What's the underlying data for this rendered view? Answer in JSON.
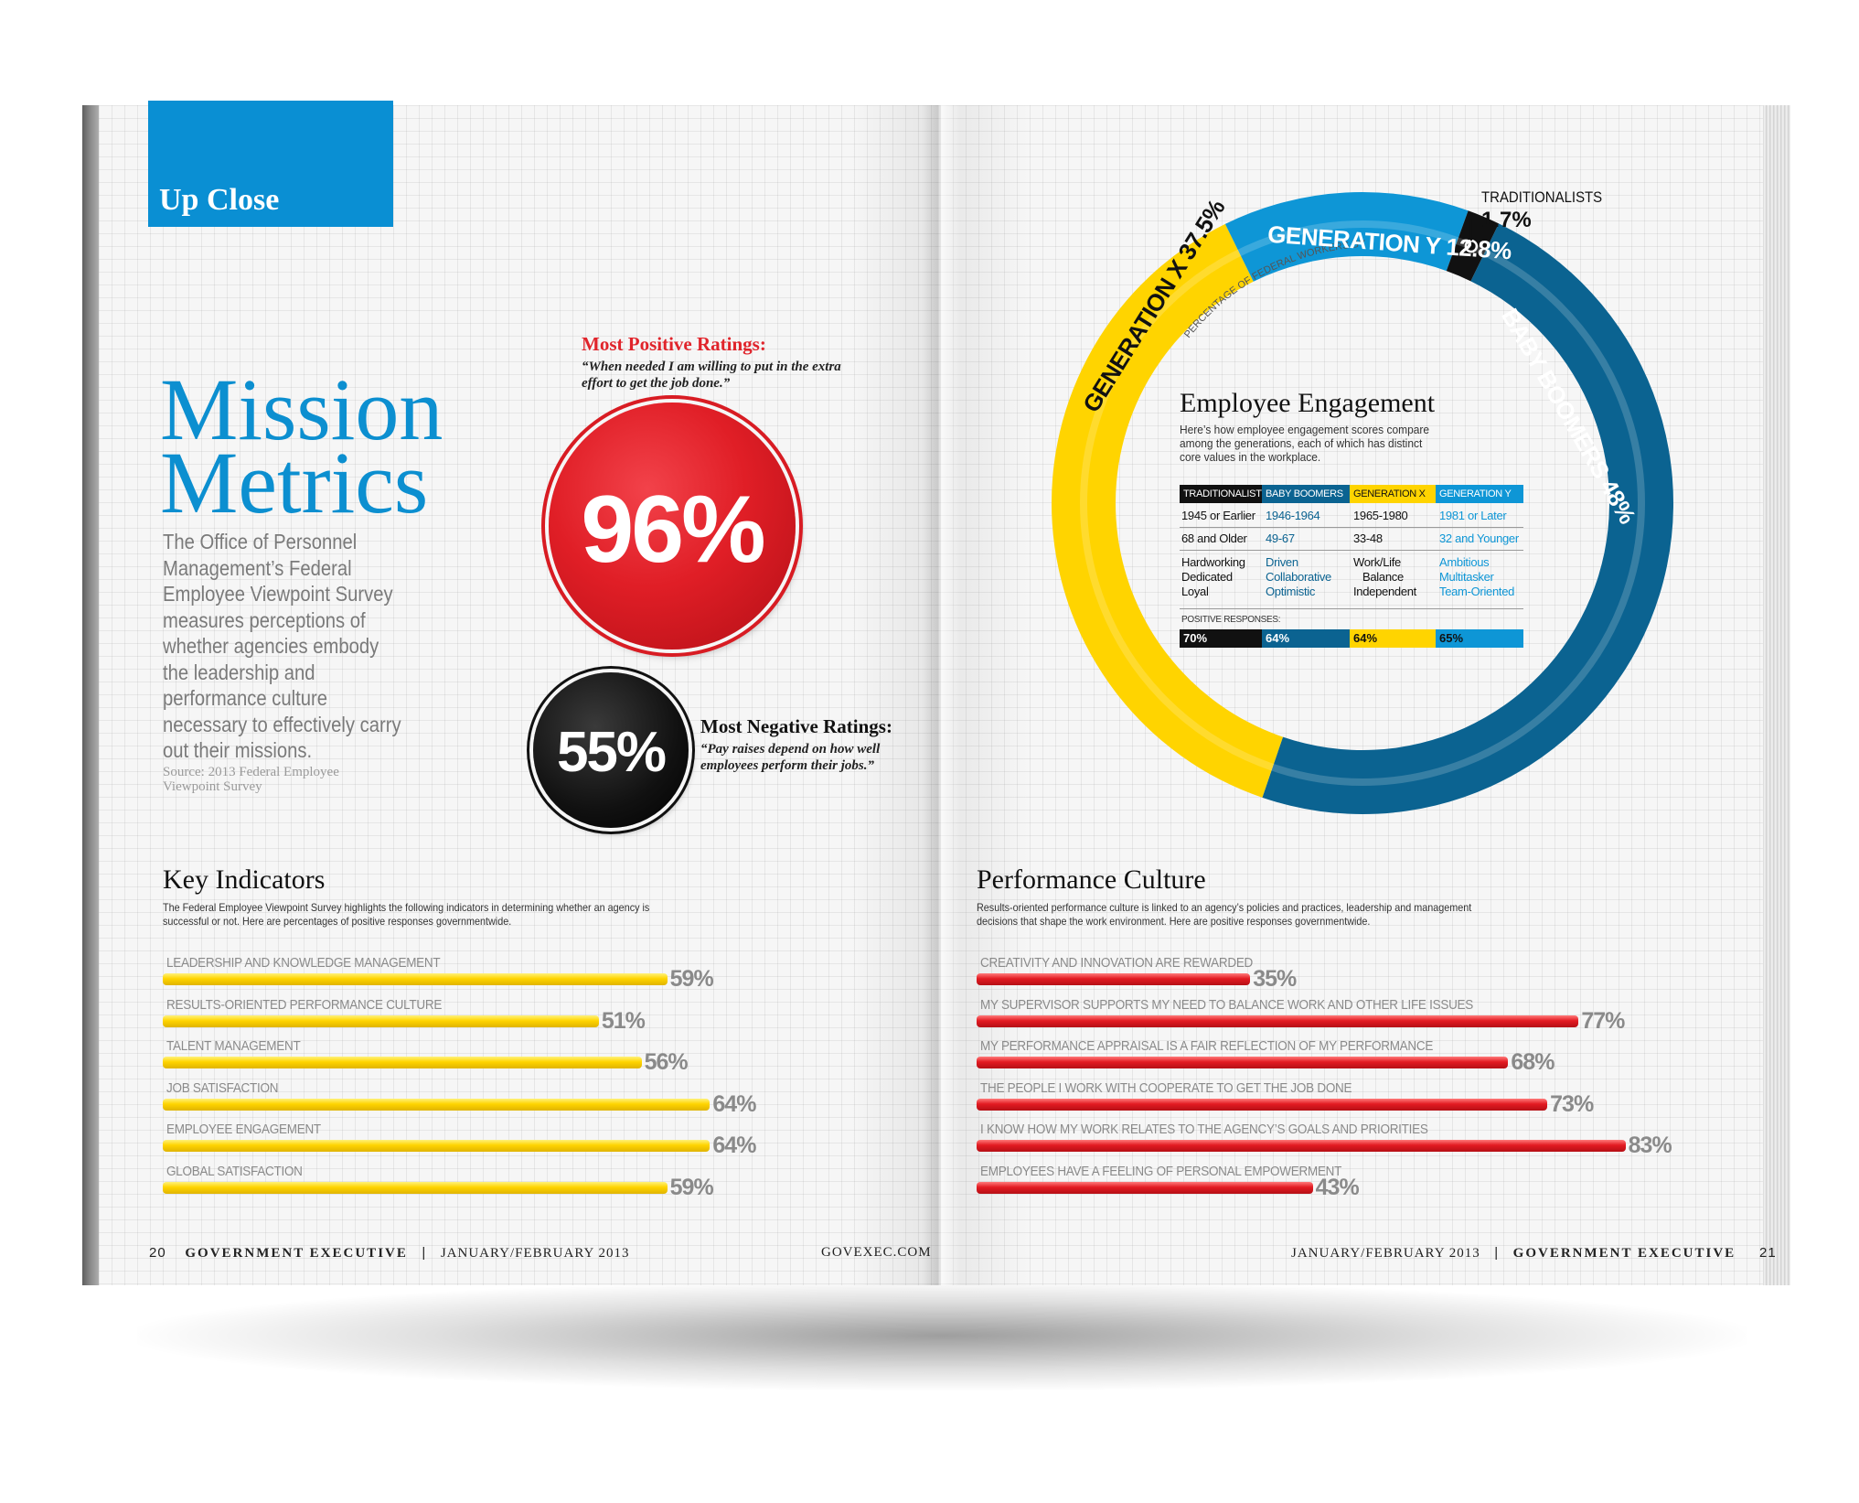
{
  "section_tab": "Up Close",
  "title_line1": "Mission",
  "title_line2": "Metrics",
  "intro": "The Office of Personnel Management’s Federal Employee Viewpoint Survey measures perceptions of whether agencies embody the leadership and performance culture necessary to effectively carry out their missions.",
  "source": "Source: 2013 Federal Employee Viewpoint Survey",
  "most_positive": {
    "heading": "Most Positive Ratings:",
    "quote": "“When needed I am willing to put in the extra effort to get the job done.”",
    "value": "96%"
  },
  "most_negative": {
    "heading": "Most Negative Ratings:",
    "quote": "“Pay raises depend on how well employees perform their jobs.”",
    "value": "55%"
  },
  "key_indicators": {
    "title": "Key Indicators",
    "description": "The Federal Employee Viewpoint Survey highlights the following indicators in determining whether an agency is successful or not. Here are percentages of positive responses governmentwide.",
    "items": [
      {
        "label": "LEADERSHIP AND KNOWLEDGE MANAGEMENT",
        "value": 59,
        "value_text": "59%"
      },
      {
        "label": "RESULTS-ORIENTED PERFORMANCE CULTURE",
        "value": 51,
        "value_text": "51%"
      },
      {
        "label": "TALENT MANAGEMENT",
        "value": 56,
        "value_text": "56%"
      },
      {
        "label": "JOB SATISFACTION",
        "value": 64,
        "value_text": "64%"
      },
      {
        "label": "EMPLOYEE ENGAGEMENT",
        "value": 64,
        "value_text": "64%"
      },
      {
        "label": "GLOBAL SATISFACTION",
        "value": 59,
        "value_text": "59%"
      }
    ]
  },
  "performance_culture": {
    "title": "Performance Culture",
    "description": "Results-oriented performance culture is linked to an agency’s policies and practices, leadership and management decisions that shape the work environment. Here are positive responses governmentwide.",
    "items": [
      {
        "label": "CREATIVITY AND INNOVATION ARE REWARDED",
        "value": 35,
        "value_text": "35%"
      },
      {
        "label": "MY SUPERVISOR SUPPORTS MY NEED TO BALANCE WORK AND OTHER LIFE ISSUES",
        "value": 77,
        "value_text": "77%"
      },
      {
        "label": "MY PERFORMANCE APPRAISAL IS A FAIR REFLECTION OF MY PERFORMANCE",
        "value": 68,
        "value_text": "68%"
      },
      {
        "label": "THE PEOPLE I WORK WITH COOPERATE TO GET THE JOB DONE",
        "value": 73,
        "value_text": "73%"
      },
      {
        "label": "I KNOW HOW MY WORK RELATES TO THE AGENCY’S GOALS AND PRIORITIES",
        "value": 83,
        "value_text": "83%"
      },
      {
        "label": "EMPLOYEES HAVE A FEELING OF PERSONAL EMPOWERMENT",
        "value": 43,
        "value_text": "43%"
      }
    ]
  },
  "engagement": {
    "title": "Employee Engagement",
    "description": "Here’s how employee engagement scores compare among the generations, each of which has distinct core values in the workplace.",
    "ring_caption": "PERCENTAGE OF FEDERAL WORKERS BY GENERATION",
    "positive_label": "POSITIVE RESPONSES:",
    "headers": [
      "TRADITIONALISTS",
      "BABY BOOMERS",
      "GENERATION X",
      "GENERATION Y"
    ],
    "born": [
      "1945 or Earlier",
      "1946-1964",
      "1965-1980",
      "1981 or Later"
    ],
    "ages": [
      "68 and Older",
      "49-67",
      "33-48",
      "32 and Younger"
    ],
    "values": [
      [
        "Hardworking",
        "Dedicated",
        "Loyal"
      ],
      [
        "Driven",
        "Collaborative",
        "Optimistic"
      ],
      [
        "Work/Life",
        "Balance",
        "Independent"
      ],
      [
        "Ambitious",
        "Multitasker",
        "Team-Oriented"
      ]
    ],
    "positive": [
      "70%",
      "64%",
      "64%",
      "65%"
    ]
  },
  "chart_data": [
    {
      "type": "pie",
      "title": "",
      "categories": [
        "BABY BOOMERS",
        "GENERATION X",
        "GENERATION Y",
        "TRADITIONALISTS"
      ],
      "values": [
        48,
        37.5,
        12.8,
        1.7
      ],
      "value_labels": [
        "48%",
        "37.5%",
        "12.8%",
        "1.7%"
      ],
      "colors": [
        "#0b6391",
        "#ffd400",
        "#0e96d6",
        "#111111"
      ]
    },
    {
      "type": "bar",
      "title": "Key Indicators",
      "categories": [
        "LEADERSHIP AND KNOWLEDGE MANAGEMENT",
        "RESULTS-ORIENTED PERFORMANCE CULTURE",
        "TALENT MANAGEMENT",
        "JOB SATISFACTION",
        "EMPLOYEE ENGAGEMENT",
        "GLOBAL SATISFACTION"
      ],
      "values": [
        59,
        51,
        56,
        64,
        64,
        59
      ]
    },
    {
      "type": "bar",
      "title": "Performance Culture",
      "categories": [
        "CREATIVITY AND INNOVATION ARE REWARDED",
        "MY SUPERVISOR SUPPORTS MY NEED TO BALANCE WORK AND OTHER LIFE ISSUES",
        "MY PERFORMANCE APPRAISAL IS A FAIR REFLECTION OF MY PERFORMANCE",
        "THE PEOPLE I WORK WITH COOPERATE TO GET THE JOB DONE",
        "I KNOW HOW MY WORK RELATES TO THE AGENCY’S GOALS AND PRIORITIES",
        "EMPLOYEES HAVE A FEELING OF PERSONAL EMPOWERMENT"
      ],
      "values": [
        35,
        77,
        68,
        73,
        83,
        43
      ]
    }
  ],
  "footer_left": {
    "page": "20",
    "publication": "GOVERNMENT EXECUTIVE",
    "sep": "|",
    "issue": "JANUARY/FEBRUARY 2013",
    "site": "GOVEXEC.COM"
  },
  "footer_right": {
    "issue": "JANUARY/FEBRUARY 2013",
    "sep": "|",
    "publication": "GOVERNMENT EXECUTIVE",
    "page": "21"
  },
  "colors": {
    "accent_blue": "#0c8fd0",
    "red": "#e01e26",
    "yellow": "#ffd400",
    "dark_blue": "#0b6391"
  }
}
